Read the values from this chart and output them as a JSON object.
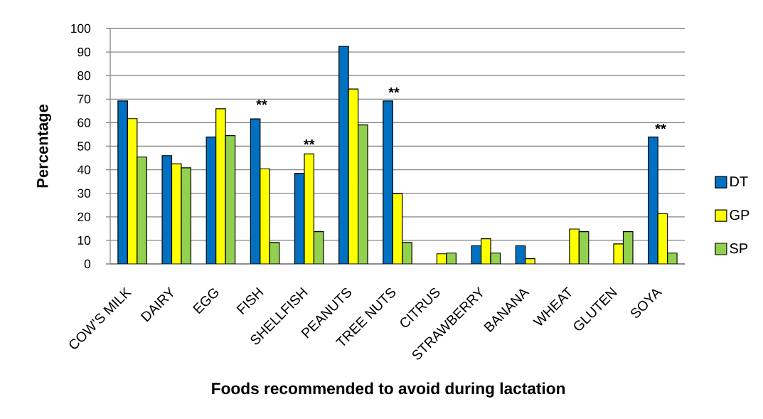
{
  "chart_data": {
    "type": "bar",
    "xlabel": "Foods recommended to avoid during lactation",
    "ylabel": "Percentage",
    "categories": [
      "COW’S MILK",
      "DAIRY",
      "EGG",
      "FISH",
      "SHELLFISH",
      "PEANUTS",
      "TREE NUTS",
      "CITRUS",
      "STRAWBERRY",
      "BANANA",
      "WHEAT",
      "GLUTEN",
      "SOYA"
    ],
    "series": [
      {
        "name": "DT",
        "color": "#0070c0",
        "values": [
          69.2,
          46.0,
          53.9,
          61.6,
          38.5,
          92.4,
          69.2,
          null,
          7.7,
          7.7,
          null,
          null,
          53.9
        ]
      },
      {
        "name": "GP",
        "color": "#ffff00",
        "values": [
          61.7,
          42.5,
          65.9,
          40.4,
          46.7,
          74.3,
          29.8,
          4.3,
          10.7,
          2.2,
          14.8,
          8.5,
          21.3
        ]
      },
      {
        "name": "SP",
        "color": "#92d050",
        "values": [
          45.4,
          40.8,
          54.5,
          9.1,
          13.7,
          59.0,
          9.1,
          4.6,
          4.6,
          null,
          13.7,
          13.7,
          4.6
        ]
      }
    ],
    "ylim": [
      0,
      100
    ],
    "yticks": [
      0,
      10,
      20,
      30,
      40,
      50,
      60,
      70,
      80,
      90,
      100
    ],
    "grid": "y",
    "legend": "right",
    "annotations": [
      "**",
      {
        "text": "**",
        "x": "SHELLFISH",
        "y": 46.7
      },
      "**",
      "**"
    ]
  }
}
